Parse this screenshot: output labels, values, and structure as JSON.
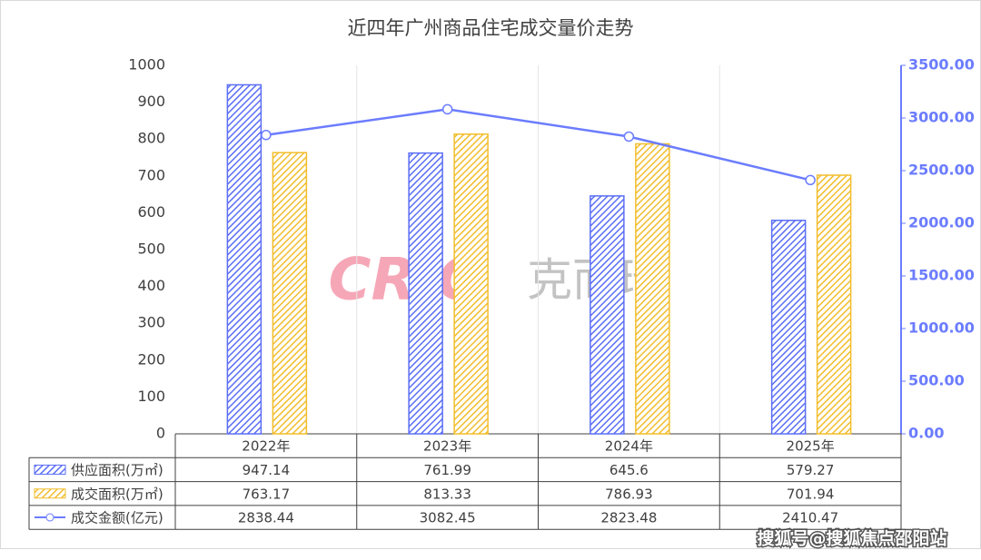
{
  "chart_data": {
    "type": "bar",
    "title": "近四年广州商品住宅成交量价走势",
    "categories": [
      "2022年",
      "2023年",
      "2024年",
      "2025年"
    ],
    "series": [
      {
        "name": "供应面积(万㎡)",
        "type": "bar",
        "color": "#5b6ef5",
        "values": [
          947.14,
          761.99,
          645.6,
          579.27
        ]
      },
      {
        "name": "成交面积(万㎡)",
        "type": "bar",
        "color": "#f2bd2c",
        "values": [
          763.17,
          813.33,
          786.93,
          701.94
        ]
      },
      {
        "name": "成交金额(亿元)",
        "type": "line",
        "axis": "y2",
        "color": "#6b7cff",
        "values": [
          2838.44,
          3082.45,
          2823.48,
          2410.47
        ]
      }
    ],
    "ylim": [
      0,
      1000
    ],
    "yticks": [
      0,
      100,
      200,
      300,
      400,
      500,
      600,
      700,
      800,
      900,
      1000
    ],
    "y2lim": [
      0,
      3500
    ],
    "y2ticks": [
      {
        "value": 0,
        "label": "0.00"
      },
      {
        "value": 500,
        "label": "500.00"
      },
      {
        "value": 1000,
        "label": "1000.00"
      },
      {
        "value": 1500,
        "label": "1500.00"
      },
      {
        "value": 2000,
        "label": "2000.00"
      },
      {
        "value": 2500,
        "label": "2500.00"
      },
      {
        "value": 3000,
        "label": "3000.00"
      },
      {
        "value": 3500,
        "label": "3500.00"
      }
    ],
    "watermark": {
      "logo": "CRIC",
      "name": "克而瑞"
    },
    "source": "搜狐号@搜狐焦点邵阳站"
  }
}
